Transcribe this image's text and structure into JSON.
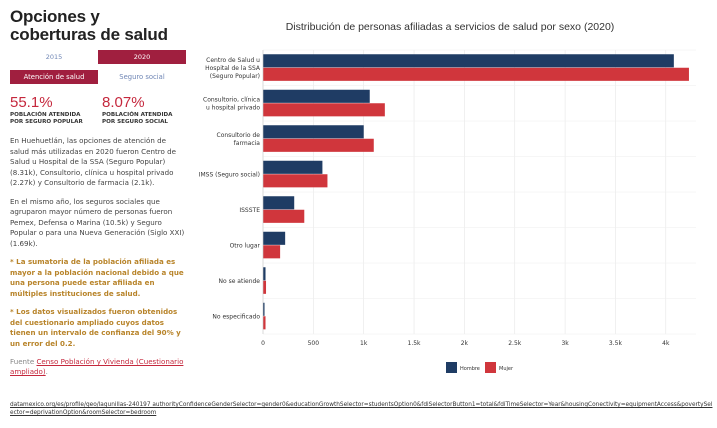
{
  "sidebar": {
    "title": "Opciones y coberturas de salud",
    "year_tabs": [
      "2015",
      "2020"
    ],
    "active_year": "2020",
    "mode_tabs": [
      "Atención de salud",
      "Seguro social"
    ],
    "active_mode": "Atención de salud",
    "stats": [
      {
        "value": "55.1%",
        "label": "POBLACIÓN ATENDIDA POR SEGURO POPULAR"
      },
      {
        "value": "8.07%",
        "label": "POBLACIÓN ATENDIDA POR SEGURO SOCIAL"
      }
    ],
    "paragraph1": "En Huehuetlán, las opciones de atención de salud más utilizadas en 2020 fueron Centro de Salud u Hospital de la SSA (Seguro Popular) (8.31k), Consultorio, clínica u hospital privado (2.27k) y Consultorio de farmacia (2.1k).",
    "paragraph2": "En el mismo año, los seguros sociales que agruparon mayor número de personas fueron Pemex, Defensa o Marina (10.5k) y Seguro Popular o para una Nueva Generación (Siglo XXI) (1.69k).",
    "note1": "* La sumatoria de la población afiliada es mayor a la población nacional debido a que una persona puede estar afiliada en múltiples instituciones de salud.",
    "note2": "* Los datos visualizados fueron obtenidos del cuestionario ampliado cuyos datos tienen un intervalo de confianza del 90% y un error del 0.2.",
    "source_prefix": "Fuente",
    "source_link": "Censo Población y Vivienda (Cuestionario ampliado)",
    "source_suffix": "."
  },
  "footer_url": "datamexico.org/es/profile/geo/lagunillas-240197 authorityConfidenceGenderSelector=gender0&educationGrowthSelector=studentsOption0&fdiSelectorButton1=total&fdiTimeSelector=Year&housingConectivity=equipmentAccess&povertySelector=deprivationOption&roomSelector=bedroom",
  "colors": {
    "accent": "#a01f3f",
    "hombre": "#1f3c64",
    "mujer": "#d0363c"
  },
  "chart_data": {
    "type": "bar",
    "orientation": "horizontal",
    "title": "Distribución de personas afiliadas a servicios de salud por sexo (2020)",
    "categories": [
      [
        "Centro de Salud u",
        "Hospital de la SSA",
        "(Seguro Popular)"
      ],
      [
        "Consultorio, clínica",
        "u hospital privado"
      ],
      [
        "Consultorio de",
        "farmacia"
      ],
      [
        "IMSS (Seguro social)"
      ],
      [
        "ISSSTE"
      ],
      [
        "Otro lugar"
      ],
      [
        "No se atiende"
      ],
      [
        "No especificado"
      ]
    ],
    "series": [
      {
        "name": "Hombre",
        "values": [
          4080,
          1060,
          1000,
          590,
          310,
          220,
          25,
          15
        ]
      },
      {
        "name": "Mujer",
        "values": [
          4230,
          1210,
          1100,
          640,
          410,
          170,
          30,
          25
        ]
      }
    ],
    "xticks": [
      0,
      500,
      1000,
      1500,
      2000,
      2500,
      3000,
      3500,
      4000
    ],
    "xtick_labels": [
      "0",
      "500",
      "1k",
      "1.5k",
      "2k",
      "2.5k",
      "3k",
      "3.5k",
      "4k"
    ],
    "xlim": [
      0,
      4300
    ],
    "legend": [
      "Hombre",
      "Mujer"
    ],
    "legend_position": "bottom"
  }
}
